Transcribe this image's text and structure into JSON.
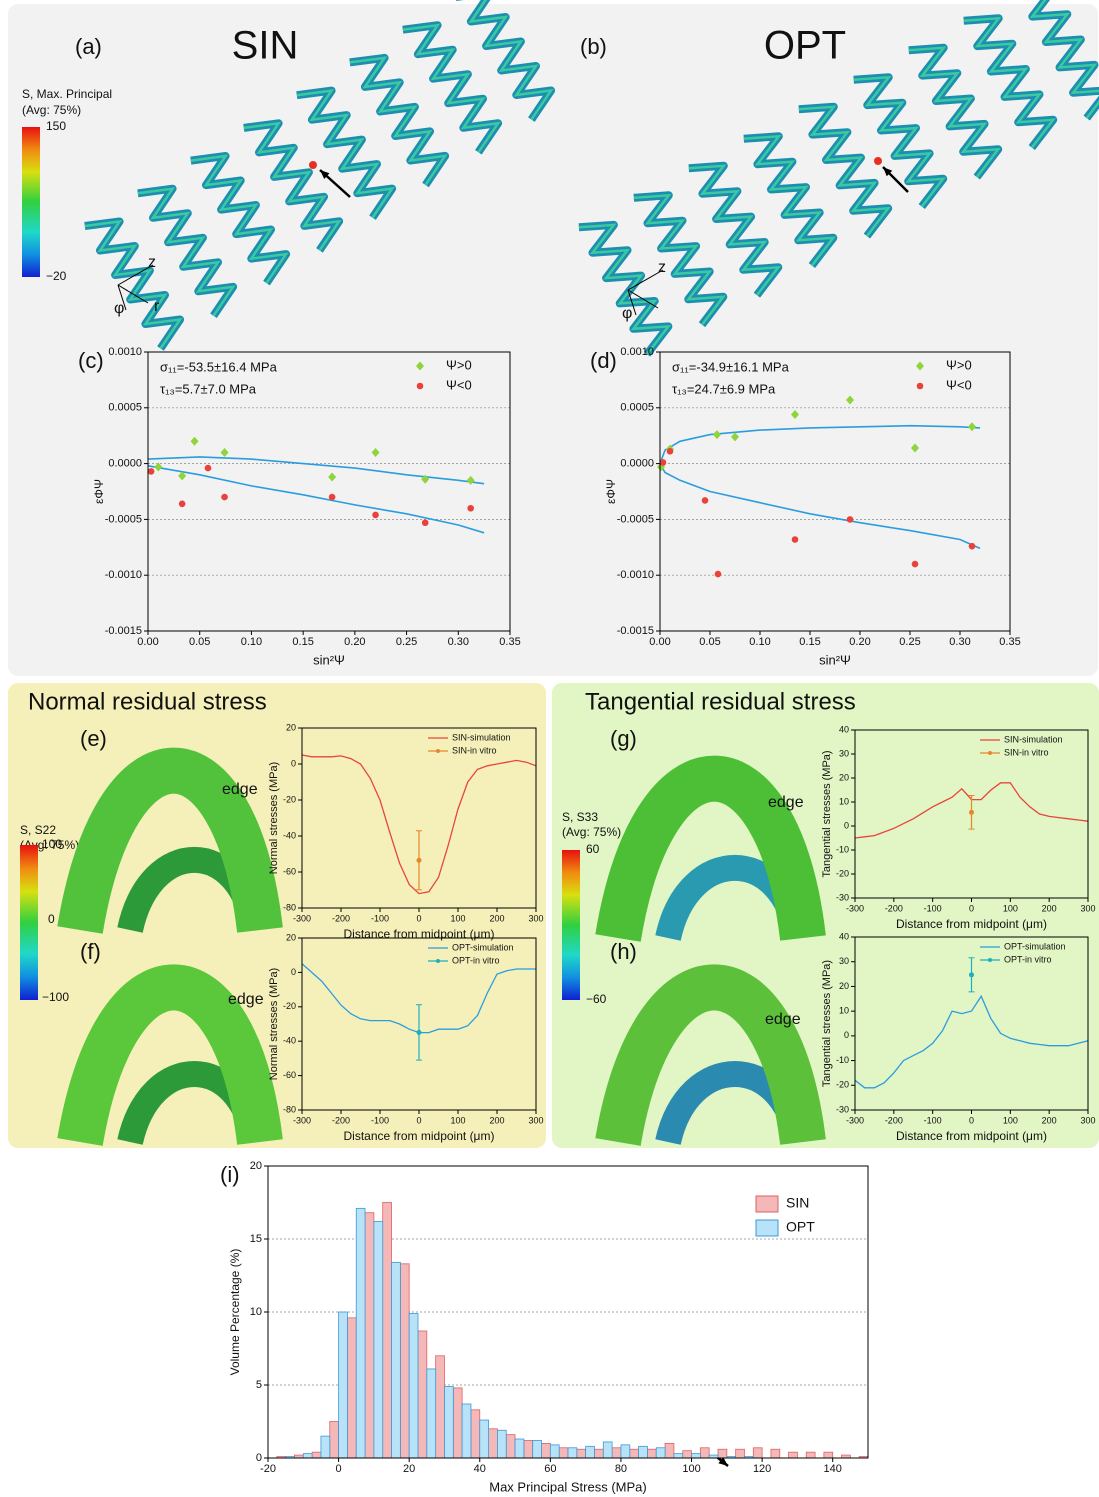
{
  "figure": {
    "top": {
      "panel_a": "(a)",
      "title_a": "SIN",
      "panel_b": "(b)",
      "title_b": "OPT",
      "colorbar": {
        "title": [
          "S, Max. Principal",
          "(Avg: 75%)"
        ],
        "labels": [
          "150",
          "−20"
        ]
      },
      "axes_a": [
        "z",
        "r",
        "φ"
      ],
      "axes_b": [
        "z",
        "φ"
      ]
    },
    "normal": {
      "title": "Normal residual stress",
      "panel_e": "(e)",
      "panel_f": "(f)",
      "colorbar": {
        "title": [
          "S, S22",
          "(Avg: 75%)"
        ],
        "labels": [
          "100",
          "0",
          "−100"
        ]
      },
      "edge_e": "edge",
      "edge_f": "edge"
    },
    "tangential": {
      "title": "Tangential residual stress",
      "panel_g": "(g)",
      "panel_h": "(h)",
      "colorbar": {
        "title": [
          "S, S33",
          "(Avg: 75%)"
        ],
        "labels": [
          "60",
          "0",
          "−60"
        ]
      },
      "edge_g": "edge",
      "edge_h": "edge"
    }
  },
  "chart_data": [
    {
      "type": "scatter",
      "panel": "(c)",
      "xlabel": "sin²Ψ",
      "ylabel": "εΦΨ",
      "annotations": [
        "σ₁₁=-53.5±16.4 MPa",
        "τ₁₃=5.7±7.0 MPa"
      ],
      "xlim": [
        0,
        0.35
      ],
      "xticks": [
        {
          "value": 0,
          "label": "0.00"
        },
        0.05,
        {
          "value": 0.1,
          "label": "0.10"
        },
        0.15,
        {
          "value": 0.2,
          "label": "0.20"
        },
        0.25,
        {
          "value": 0.3,
          "label": "0.30"
        },
        0.35
      ],
      "ylim": [
        -0.0015,
        0.001
      ],
      "yticks": [
        -0.0015,
        {
          "value": -0.001,
          "label": "-0.0010"
        },
        -0.0005,
        {
          "value": 0,
          "label": "0.0000"
        },
        0.0005,
        {
          "value": 0.001,
          "label": "0.0010"
        }
      ],
      "grid": true,
      "legend": "upper right",
      "series": [
        {
          "name": "Ψ>0",
          "color": "#8fd43a",
          "marker": "diamond",
          "x": [
            0.01,
            0.033,
            0.045,
            0.074,
            0.178,
            0.22,
            0.268,
            0.312
          ],
          "values": [
            -3e-05,
            -0.00011,
            0.0002,
            0.0001,
            -0.00012,
            0.0001,
            -0.00014,
            -0.00015
          ]
        },
        {
          "name": "Ψ<0",
          "color": "#e8423a",
          "marker": "circle",
          "x": [
            0.003,
            0.033,
            0.058,
            0.074,
            0.178,
            0.22,
            0.268,
            0.312
          ],
          "values": [
            -7e-05,
            -0.00036,
            -4e-05,
            -0.0003,
            -0.0003,
            -0.00046,
            -0.00053,
            -0.0004
          ]
        }
      ],
      "fits": [
        {
          "color": "#2a9de0",
          "x": [
            0,
            0.05,
            0.1,
            0.15,
            0.2,
            0.25,
            0.3,
            0.325
          ],
          "values": [
            4e-05,
            6e-05,
            4e-05,
            0,
            -4e-05,
            -0.0001,
            -0.00015,
            -0.00018
          ]
        },
        {
          "color": "#2a9de0",
          "x": [
            0,
            0.05,
            0.1,
            0.15,
            0.2,
            0.25,
            0.3,
            0.325
          ],
          "values": [
            -2e-05,
            -0.0001,
            -0.0002,
            -0.00028,
            -0.00037,
            -0.00045,
            -0.00055,
            -0.00062
          ]
        }
      ]
    },
    {
      "type": "scatter",
      "panel": "(d)",
      "xlabel": "sin²Ψ",
      "ylabel": "εΦΨ",
      "annotations": [
        "σ₁₁=-34.9±16.1 MPa",
        "τ₁₃=24.7±6.9 MPa"
      ],
      "xlim": [
        0,
        0.35
      ],
      "xticks": [
        {
          "value": 0,
          "label": "0.00"
        },
        0.05,
        {
          "value": 0.1,
          "label": "0.10"
        },
        0.15,
        {
          "value": 0.2,
          "label": "0.20"
        },
        0.25,
        {
          "value": 0.3,
          "label": "0.30"
        },
        0.35
      ],
      "ylim": [
        -0.0015,
        0.001
      ],
      "yticks": [
        -0.0015,
        {
          "value": -0.001,
          "label": "-0.0010"
        },
        -0.0005,
        {
          "value": 0,
          "label": "0.0000"
        },
        0.0005,
        {
          "value": 0.001,
          "label": "0.0010"
        }
      ],
      "grid": true,
      "legend": "upper right",
      "series": [
        {
          "name": "Ψ>0",
          "color": "#8fd43a",
          "marker": "diamond",
          "x": [
            0.001,
            0.01,
            0.057,
            0.075,
            0.135,
            0.19,
            0.255,
            0.312
          ],
          "values": [
            -3e-05,
            0.00013,
            0.00026,
            0.00024,
            0.00044,
            0.00057,
            0.00014,
            0.00033
          ]
        },
        {
          "name": "Ψ<0",
          "color": "#e8423a",
          "marker": "circle",
          "x": [
            0.003,
            0.01,
            0.045,
            0.058,
            0.135,
            0.19,
            0.255,
            0.312
          ],
          "values": [
            1e-05,
            0.00011,
            -0.00033,
            -0.00099,
            -0.00068,
            -0.0005,
            -0.0009,
            -0.00074
          ]
        }
      ],
      "fits": [
        {
          "color": "#2a9de0",
          "x": [
            0,
            0.005,
            0.02,
            0.05,
            0.1,
            0.15,
            0.2,
            0.25,
            0.3,
            0.32
          ],
          "values": [
            0,
            0.00012,
            0.0002,
            0.00026,
            0.0003,
            0.00032,
            0.00033,
            0.00034,
            0.00033,
            0.00032
          ]
        },
        {
          "color": "#2a9de0",
          "x": [
            0,
            0.005,
            0.02,
            0.05,
            0.1,
            0.15,
            0.2,
            0.25,
            0.3,
            0.32
          ],
          "values": [
            0,
            -8e-05,
            -0.00015,
            -0.00025,
            -0.00035,
            -0.00045,
            -0.00053,
            -0.0006,
            -0.00068,
            -0.00076
          ]
        }
      ]
    },
    {
      "type": "line",
      "xlabel": "Distance from midpoint (μm)",
      "ylabel": "Normal stresses (MPa)",
      "xlim": [
        -300,
        300
      ],
      "xticks": [
        -300,
        -200,
        -100,
        0,
        100,
        200,
        300
      ],
      "ylim": [
        -80,
        20
      ],
      "yticks": [
        -80,
        -60,
        -40,
        -20,
        0,
        20
      ],
      "legend": "upper right",
      "series": [
        {
          "name": "SIN-simulation",
          "color": "#e8453c",
          "x": [
            -300,
            -275,
            -250,
            -225,
            -200,
            -175,
            -150,
            -125,
            -100,
            -75,
            -50,
            -25,
            0,
            25,
            50,
            75,
            100,
            125,
            150,
            175,
            200,
            225,
            250,
            275,
            300
          ],
          "values": [
            5,
            4,
            4,
            4,
            4.5,
            3,
            0,
            -8,
            -20,
            -38,
            -55,
            -67,
            -72,
            -71,
            -63,
            -45,
            -25,
            -10,
            -3,
            -1,
            0,
            1,
            2,
            1,
            -1
          ]
        },
        {
          "name": "SIN-in vitro",
          "color": "#e8862a",
          "x": [
            0
          ],
          "values": [
            -53.5
          ],
          "errors": [
            16.4
          ]
        }
      ]
    },
    {
      "type": "line",
      "xlabel": "Distance from midpoint (μm)",
      "ylabel": "Normal stresses (MPa)",
      "xlim": [
        -300,
        300
      ],
      "xticks": [
        -300,
        -200,
        -100,
        0,
        100,
        200,
        300
      ],
      "ylim": [
        -80,
        20
      ],
      "yticks": [
        -80,
        -60,
        -40,
        -20,
        0,
        20
      ],
      "legend": "upper right",
      "series": [
        {
          "name": "OPT-simulation",
          "color": "#2a9de0",
          "x": [
            -300,
            -275,
            -250,
            -225,
            -200,
            -175,
            -150,
            -125,
            -100,
            -75,
            -50,
            -25,
            0,
            25,
            50,
            75,
            100,
            125,
            150,
            175,
            200,
            225,
            250,
            275,
            300
          ],
          "values": [
            5,
            0,
            -5,
            -12,
            -19,
            -24,
            -27,
            -28,
            -28,
            -28,
            -30,
            -33,
            -35,
            -35,
            -33,
            -33,
            -33,
            -31,
            -25,
            -12,
            -1,
            1,
            2,
            2,
            2
          ]
        },
        {
          "name": "OPT-in vitro",
          "color": "#1ab0c0",
          "x": [
            0
          ],
          "values": [
            -34.9
          ],
          "errors": [
            16.1
          ]
        }
      ]
    },
    {
      "type": "line",
      "xlabel": "Distance from midpoint (μm)",
      "ylabel": "Tangential stresses (MPa)",
      "xlim": [
        -300,
        300
      ],
      "xticks": [
        -300,
        -200,
        -100,
        0,
        100,
        200,
        300
      ],
      "ylim": [
        -30,
        40
      ],
      "yticks": [
        -30,
        -20,
        -10,
        0,
        10,
        20,
        30,
        40
      ],
      "legend": "upper right",
      "series": [
        {
          "name": "SIN-simulation",
          "color": "#e8453c",
          "x": [
            -300,
            -275,
            -250,
            -225,
            -200,
            -175,
            -150,
            -125,
            -100,
            -75,
            -50,
            -25,
            0,
            25,
            50,
            75,
            100,
            125,
            150,
            175,
            200,
            225,
            250,
            275,
            300
          ],
          "values": [
            -5,
            -4.5,
            -4,
            -2.5,
            -1,
            1,
            3,
            5.5,
            8,
            10,
            12,
            15.5,
            11,
            11,
            15,
            18,
            18,
            12,
            8,
            5,
            4,
            3.5,
            3,
            2.5,
            2
          ]
        },
        {
          "name": "SIN-in vitro",
          "color": "#e8862a",
          "x": [
            0
          ],
          "values": [
            5.7
          ],
          "errors": [
            7.0
          ]
        }
      ]
    },
    {
      "type": "line",
      "xlabel": "Distance from midpoint (μm)",
      "ylabel": "Tangential stresses (MPa)",
      "xlim": [
        -300,
        300
      ],
      "xticks": [
        -300,
        -200,
        -100,
        0,
        100,
        200,
        300
      ],
      "ylim": [
        -30,
        40
      ],
      "yticks": [
        -30,
        -20,
        -10,
        0,
        10,
        20,
        30,
        40
      ],
      "legend": "upper right",
      "series": [
        {
          "name": "OPT-simulation",
          "color": "#2a9de0",
          "x": [
            -300,
            -275,
            -250,
            -225,
            -200,
            -175,
            -150,
            -125,
            -100,
            -75,
            -50,
            -25,
            0,
            25,
            50,
            75,
            100,
            125,
            150,
            175,
            200,
            225,
            250,
            275,
            300
          ],
          "values": [
            -18,
            -21,
            -21,
            -19,
            -15,
            -10,
            -8,
            -6,
            -3,
            2,
            10,
            9,
            10,
            16,
            7,
            1,
            -1,
            -2,
            -3,
            -3.5,
            -4,
            -4,
            -4,
            -3,
            -2
          ]
        },
        {
          "name": "OPT-in vitro",
          "color": "#1ab0c0",
          "x": [
            0
          ],
          "values": [
            24.7
          ],
          "errors": [
            6.9
          ]
        }
      ]
    },
    {
      "type": "histogram",
      "panel": "(i)",
      "xlabel": "Max Principal Stress (MPa)",
      "ylabel": "Volume Percentage (%)",
      "xlim": [
        -20,
        150
      ],
      "xticks": [
        -20,
        0,
        20,
        40,
        60,
        80,
        100,
        120,
        140
      ],
      "ylim": [
        0,
        20
      ],
      "yticks": [
        0,
        5,
        10,
        15,
        20
      ],
      "grid": true,
      "legend": "upper right",
      "bins": [
        -20,
        -15,
        -10,
        -5,
        0,
        5,
        10,
        15,
        20,
        25,
        30,
        35,
        40,
        45,
        50,
        55,
        60,
        65,
        70,
        75,
        80,
        85,
        90,
        95,
        100,
        105,
        110,
        115,
        120,
        125,
        130,
        135,
        140,
        145,
        150
      ],
      "series": [
        {
          "name": "SIN",
          "color": "#f5b8b8",
          "edge": "#e06060",
          "values": [
            0.1,
            0.2,
            0.4,
            2.5,
            9.6,
            16.8,
            17.5,
            13.3,
            8.7,
            7.0,
            4.8,
            3.3,
            2.0,
            1.6,
            1.2,
            1.0,
            0.7,
            0.6,
            0.6,
            0.7,
            0.6,
            0.6,
            1.0,
            0.5,
            0.7,
            0.6,
            0.6,
            0.7,
            0.6,
            0.4,
            0.4,
            0.4,
            0.2,
            0.1
          ]
        },
        {
          "name": "OPT",
          "color": "#b8e2f7",
          "edge": "#3a9ad8",
          "values": [
            0,
            0.1,
            0.3,
            1.5,
            10,
            17.1,
            16.2,
            13.4,
            9.9,
            6.1,
            4.9,
            3.7,
            2.6,
            1.9,
            1.3,
            1.2,
            0.9,
            0.7,
            0.8,
            1.1,
            0.9,
            0.8,
            0.7,
            0.3,
            0.3,
            0.2,
            0.1,
            0.1,
            0,
            0,
            0,
            0,
            0,
            0
          ]
        }
      ]
    }
  ]
}
